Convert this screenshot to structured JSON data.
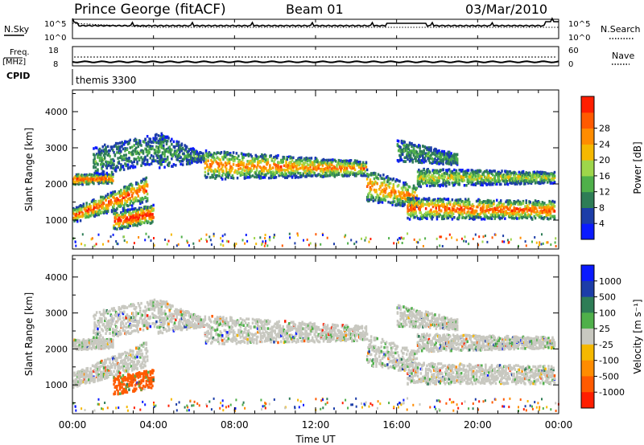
{
  "header": {
    "station": "Prince George (fitACF)",
    "beam": "Beam 01",
    "date": "03/Mar/2010"
  },
  "top_panels": {
    "nsky_label": "N.Sky",
    "nsearch_label": "N.Search",
    "noise_ticks": [
      "10^5",
      "10^0"
    ],
    "freq_label_top": "Freq.",
    "freq_label_bottom": "[MHz]",
    "freq_ticks": [
      "18",
      "8"
    ],
    "nave_label": "Nave",
    "nave_ticks": [
      "60",
      "0"
    ],
    "cpid_label": "CPID",
    "cpid_value": "themis 3300"
  },
  "chart_data": [
    {
      "type": "heatmap",
      "name": "power-panel",
      "ylabel": "Slant Range [km]",
      "yticks": [
        1000,
        2000,
        3000,
        4000
      ],
      "ylim": [
        200,
        4600
      ],
      "xlim_hours": [
        0,
        24
      ],
      "colorbar": {
        "label": "Power [dB]",
        "ticks": [
          "4",
          "8",
          "12",
          "16",
          "20",
          "24",
          "28"
        ],
        "colors": [
          "#0a1aff",
          "#1c3da8",
          "#2e7d56",
          "#4fb04a",
          "#9ed64a",
          "#f5b800",
          "#ff8c00",
          "#ff5a00",
          "#ff1e00"
        ]
      }
    },
    {
      "type": "heatmap",
      "name": "velocity-panel",
      "ylabel": "Slant Range [km]",
      "yticks": [
        1000,
        2000,
        3000,
        4000
      ],
      "ylim": [
        200,
        4600
      ],
      "xlim_hours": [
        0,
        24
      ],
      "colorbar": {
        "label": "Velocity [m s⁻¹]",
        "ticks": [
          "1000",
          "500",
          "100",
          "25",
          "-25",
          "-100",
          "-500",
          "-1000"
        ],
        "colors": [
          "#0a1aff",
          "#1c3da8",
          "#2e7d56",
          "#4fb04a",
          "#c8c8c0",
          "#f5b800",
          "#ff8c00",
          "#ff5a00",
          "#ff1e00"
        ]
      }
    }
  ],
  "x_axis": {
    "ticks": [
      "00:00",
      "04:00",
      "08:00",
      "12:00",
      "16:00",
      "20:00",
      "00:00"
    ],
    "label": "Time UT"
  }
}
